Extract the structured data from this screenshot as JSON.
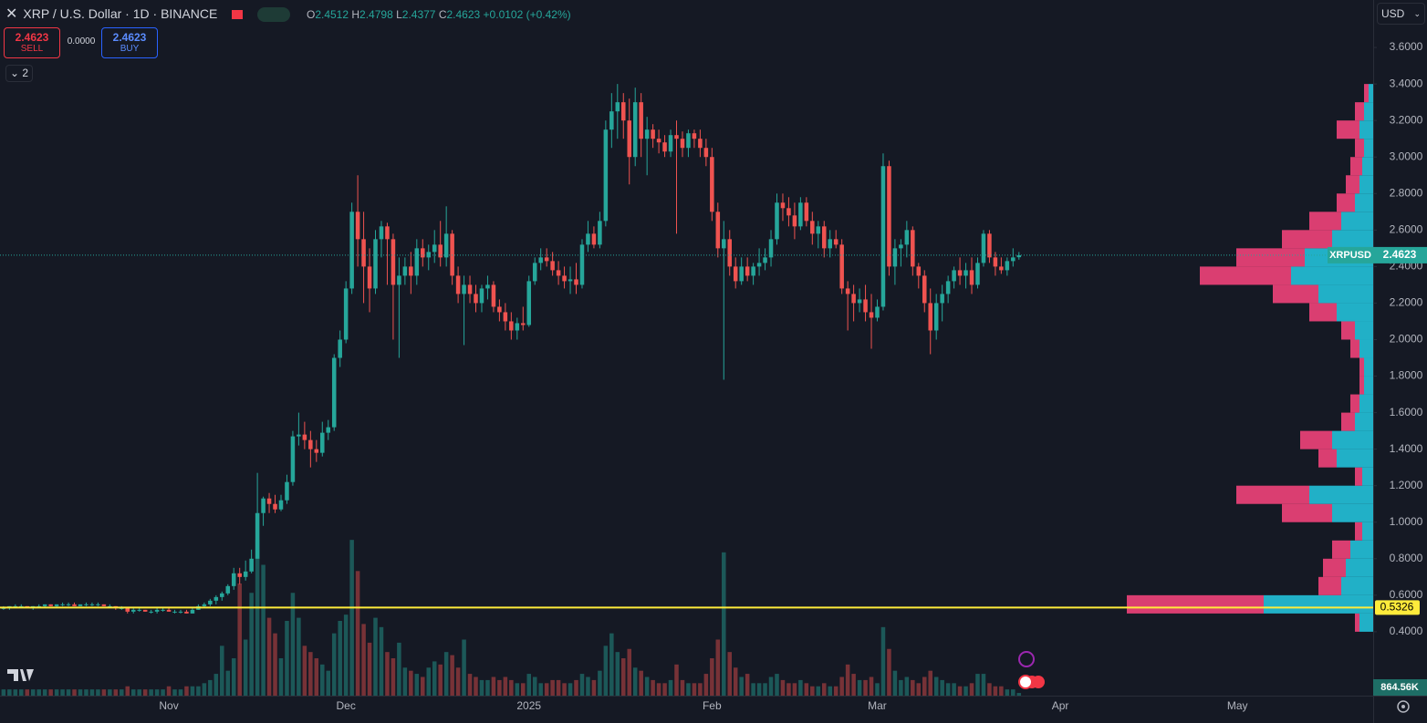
{
  "header": {
    "title": "XRP / U.S. Dollar · 1D · BINANCE",
    "ohlc_keys": [
      "O",
      "H",
      "L",
      "C"
    ],
    "change": "+0.0102 (+0.42%)",
    "sell_label": "SELL",
    "spread": "0.0000",
    "buy_label": "BUY",
    "indicators": "2",
    "currency": "USD"
  },
  "chart_data": {
    "type": "candlestick",
    "symbol": "XRPUSD",
    "up_color": "#26a69a",
    "down_color": "#ef5350",
    "xlim": [
      -0.6,
      232
    ],
    "xticks": [
      {
        "value": 28,
        "label": "Nov"
      },
      {
        "value": 58,
        "label": "Dec"
      },
      {
        "value": 89,
        "label": "2025"
      },
      {
        "value": 120,
        "label": "Feb"
      },
      {
        "value": 148,
        "label": "Mar"
      },
      {
        "value": 179,
        "label": "Apr"
      },
      {
        "value": 209,
        "label": "May"
      }
    ],
    "ylim": [
      0.05,
      3.86
    ],
    "yticks": [
      {
        "value": 0.4,
        "label": "0.4000"
      },
      {
        "value": 0.6,
        "label": "0.6000"
      },
      {
        "value": 0.8,
        "label": "0.8000"
      },
      {
        "value": 1.0,
        "label": "1.0000"
      },
      {
        "value": 1.2,
        "label": "1.2000"
      },
      {
        "value": 1.4,
        "label": "1.4000"
      },
      {
        "value": 1.6,
        "label": "1.6000"
      },
      {
        "value": 1.8,
        "label": "1.8000"
      },
      {
        "value": 2.0,
        "label": "2.0000"
      },
      {
        "value": 2.2,
        "label": "2.2000"
      },
      {
        "value": 2.4,
        "label": "2.4000"
      },
      {
        "value": 2.6,
        "label": "2.6000"
      },
      {
        "value": 2.8,
        "label": "2.8000"
      },
      {
        "value": 3.0,
        "label": "3.0000"
      },
      {
        "value": 3.2,
        "label": "3.2000"
      },
      {
        "value": 3.4,
        "label": "3.4000"
      },
      {
        "value": 3.6,
        "label": "3.6000"
      }
    ],
    "hline": {
      "value": 0.5326,
      "color": "#ffeb3b"
    },
    "candles": [
      [
        0.53,
        0.54,
        0.52,
        0.53
      ],
      [
        0.53,
        0.54,
        0.52,
        0.54
      ],
      [
        0.54,
        0.55,
        0.53,
        0.54
      ],
      [
        0.54,
        0.55,
        0.53,
        0.54
      ],
      [
        0.54,
        0.54,
        0.53,
        0.53
      ],
      [
        0.53,
        0.54,
        0.52,
        0.54
      ],
      [
        0.54,
        0.55,
        0.53,
        0.54
      ],
      [
        0.54,
        0.55,
        0.53,
        0.55
      ],
      [
        0.55,
        0.55,
        0.54,
        0.54
      ],
      [
        0.54,
        0.55,
        0.53,
        0.55
      ],
      [
        0.55,
        0.56,
        0.54,
        0.55
      ],
      [
        0.55,
        0.56,
        0.54,
        0.55
      ],
      [
        0.55,
        0.56,
        0.54,
        0.54
      ],
      [
        0.54,
        0.55,
        0.54,
        0.55
      ],
      [
        0.55,
        0.56,
        0.54,
        0.55
      ],
      [
        0.55,
        0.56,
        0.54,
        0.55
      ],
      [
        0.55,
        0.56,
        0.54,
        0.55
      ],
      [
        0.55,
        0.55,
        0.54,
        0.54
      ],
      [
        0.54,
        0.55,
        0.53,
        0.54
      ],
      [
        0.54,
        0.54,
        0.52,
        0.53
      ],
      [
        0.53,
        0.54,
        0.52,
        0.53
      ],
      [
        0.53,
        0.53,
        0.5,
        0.51
      ],
      [
        0.51,
        0.53,
        0.5,
        0.52
      ],
      [
        0.52,
        0.53,
        0.51,
        0.52
      ],
      [
        0.52,
        0.52,
        0.51,
        0.51
      ],
      [
        0.51,
        0.52,
        0.5,
        0.51
      ],
      [
        0.51,
        0.53,
        0.5,
        0.52
      ],
      [
        0.52,
        0.53,
        0.51,
        0.52
      ],
      [
        0.52,
        0.53,
        0.51,
        0.51
      ],
      [
        0.51,
        0.52,
        0.5,
        0.51
      ],
      [
        0.51,
        0.52,
        0.5,
        0.51
      ],
      [
        0.51,
        0.52,
        0.5,
        0.5
      ],
      [
        0.5,
        0.53,
        0.5,
        0.52
      ],
      [
        0.52,
        0.55,
        0.52,
        0.54
      ],
      [
        0.54,
        0.56,
        0.53,
        0.55
      ],
      [
        0.55,
        0.58,
        0.54,
        0.57
      ],
      [
        0.57,
        0.6,
        0.55,
        0.59
      ],
      [
        0.59,
        0.62,
        0.57,
        0.61
      ],
      [
        0.61,
        0.66,
        0.6,
        0.65
      ],
      [
        0.65,
        0.75,
        0.63,
        0.72
      ],
      [
        0.72,
        0.75,
        0.66,
        0.7
      ],
      [
        0.7,
        0.79,
        0.68,
        0.73
      ],
      [
        0.73,
        0.85,
        0.72,
        0.8
      ],
      [
        0.8,
        1.27,
        0.8,
        1.05
      ],
      [
        1.05,
        1.14,
        0.98,
        1.13
      ],
      [
        1.13,
        1.16,
        1.05,
        1.1
      ],
      [
        1.1,
        1.15,
        1.05,
        1.07
      ],
      [
        1.07,
        1.15,
        1.06,
        1.12
      ],
      [
        1.12,
        1.26,
        1.1,
        1.22
      ],
      [
        1.22,
        1.5,
        1.2,
        1.47
      ],
      [
        1.47,
        1.6,
        1.42,
        1.48
      ],
      [
        1.48,
        1.55,
        1.4,
        1.45
      ],
      [
        1.45,
        1.5,
        1.3,
        1.4
      ],
      [
        1.4,
        1.45,
        1.33,
        1.38
      ],
      [
        1.38,
        1.55,
        1.36,
        1.49
      ],
      [
        1.49,
        1.56,
        1.45,
        1.52
      ],
      [
        1.52,
        1.92,
        1.5,
        1.9
      ],
      [
        1.9,
        2.05,
        1.85,
        2.0
      ],
      [
        2.0,
        2.32,
        1.98,
        2.28
      ],
      [
        2.28,
        2.75,
        2.25,
        2.7
      ],
      [
        2.7,
        2.9,
        2.4,
        2.55
      ],
      [
        2.55,
        2.7,
        2.2,
        2.4
      ],
      [
        2.4,
        2.5,
        2.15,
        2.28
      ],
      [
        2.28,
        2.6,
        2.25,
        2.55
      ],
      [
        2.55,
        2.65,
        2.45,
        2.62
      ],
      [
        2.62,
        2.64,
        2.3,
        2.55
      ],
      [
        2.55,
        2.58,
        2.0,
        2.3
      ],
      [
        2.3,
        2.45,
        1.9,
        2.35
      ],
      [
        2.35,
        2.45,
        2.3,
        2.4
      ],
      [
        2.4,
        2.48,
        2.25,
        2.35
      ],
      [
        2.35,
        2.55,
        2.3,
        2.5
      ],
      [
        2.5,
        2.55,
        2.4,
        2.45
      ],
      [
        2.45,
        2.52,
        2.38,
        2.48
      ],
      [
        2.48,
        2.6,
        2.42,
        2.52
      ],
      [
        2.52,
        2.65,
        2.4,
        2.45
      ],
      [
        2.45,
        2.73,
        2.4,
        2.58
      ],
      [
        2.58,
        2.6,
        2.3,
        2.35
      ],
      [
        2.35,
        2.4,
        2.2,
        2.25
      ],
      [
        2.25,
        2.35,
        1.97,
        2.3
      ],
      [
        2.3,
        2.35,
        2.2,
        2.25
      ],
      [
        2.25,
        2.3,
        2.15,
        2.2
      ],
      [
        2.2,
        2.3,
        2.15,
        2.28
      ],
      [
        2.28,
        2.35,
        2.22,
        2.3
      ],
      [
        2.3,
        2.32,
        2.15,
        2.18
      ],
      [
        2.18,
        2.22,
        2.1,
        2.15
      ],
      [
        2.15,
        2.2,
        2.05,
        2.1
      ],
      [
        2.1,
        2.15,
        2.0,
        2.05
      ],
      [
        2.05,
        2.12,
        2.0,
        2.09
      ],
      [
        2.09,
        2.18,
        2.05,
        2.08
      ],
      [
        2.08,
        2.35,
        2.07,
        2.32
      ],
      [
        2.32,
        2.45,
        2.3,
        2.42
      ],
      [
        2.42,
        2.5,
        2.38,
        2.45
      ],
      [
        2.45,
        2.5,
        2.4,
        2.43
      ],
      [
        2.43,
        2.48,
        2.35,
        2.38
      ],
      [
        2.38,
        2.43,
        2.3,
        2.35
      ],
      [
        2.35,
        2.4,
        2.28,
        2.32
      ],
      [
        2.32,
        2.4,
        2.25,
        2.33
      ],
      [
        2.33,
        2.42,
        2.25,
        2.3
      ],
      [
        2.3,
        2.55,
        2.28,
        2.52
      ],
      [
        2.52,
        2.65,
        2.48,
        2.58
      ],
      [
        2.58,
        2.62,
        2.5,
        2.52
      ],
      [
        2.52,
        2.7,
        2.5,
        2.65
      ],
      [
        2.65,
        3.2,
        2.62,
        3.15
      ],
      [
        3.15,
        3.35,
        3.05,
        3.25
      ],
      [
        3.25,
        3.4,
        3.1,
        3.3
      ],
      [
        3.3,
        3.35,
        3.1,
        3.2
      ],
      [
        3.2,
        3.32,
        2.85,
        3.0
      ],
      [
        3.0,
        3.38,
        2.95,
        3.3
      ],
      [
        3.3,
        3.35,
        3.0,
        3.1
      ],
      [
        3.1,
        3.22,
        2.9,
        3.15
      ],
      [
        3.15,
        3.18,
        3.05,
        3.1
      ],
      [
        3.1,
        3.15,
        3.02,
        3.08
      ],
      [
        3.08,
        3.12,
        3.0,
        3.03
      ],
      [
        3.03,
        3.15,
        3.0,
        3.12
      ],
      [
        3.12,
        3.2,
        2.58,
        3.1
      ],
      [
        3.1,
        3.14,
        3.0,
        3.05
      ],
      [
        3.05,
        3.15,
        3.0,
        3.13
      ],
      [
        3.13,
        3.15,
        3.05,
        3.1
      ],
      [
        3.1,
        3.15,
        3.0,
        3.05
      ],
      [
        3.05,
        3.1,
        2.95,
        3.0
      ],
      [
        3.0,
        3.05,
        2.65,
        2.7
      ],
      [
        2.7,
        2.75,
        2.45,
        2.5
      ],
      [
        2.5,
        2.65,
        1.78,
        2.55
      ],
      [
        2.55,
        2.6,
        2.35,
        2.4
      ],
      [
        2.4,
        2.45,
        2.28,
        2.32
      ],
      [
        2.32,
        2.45,
        2.3,
        2.4
      ],
      [
        2.4,
        2.45,
        2.32,
        2.35
      ],
      [
        2.35,
        2.42,
        2.3,
        2.4
      ],
      [
        2.4,
        2.5,
        2.35,
        2.42
      ],
      [
        2.42,
        2.5,
        2.38,
        2.45
      ],
      [
        2.45,
        2.6,
        2.4,
        2.55
      ],
      [
        2.55,
        2.8,
        2.52,
        2.75
      ],
      [
        2.75,
        2.8,
        2.65,
        2.72
      ],
      [
        2.72,
        2.78,
        2.62,
        2.68
      ],
      [
        2.68,
        2.75,
        2.55,
        2.62
      ],
      [
        2.62,
        2.78,
        2.6,
        2.75
      ],
      [
        2.75,
        2.78,
        2.62,
        2.65
      ],
      [
        2.65,
        2.7,
        2.52,
        2.58
      ],
      [
        2.58,
        2.65,
        2.5,
        2.62
      ],
      [
        2.62,
        2.65,
        2.45,
        2.5
      ],
      [
        2.5,
        2.6,
        2.45,
        2.55
      ],
      [
        2.55,
        2.6,
        2.5,
        2.52
      ],
      [
        2.52,
        2.55,
        2.25,
        2.28
      ],
      [
        2.28,
        2.32,
        2.05,
        2.25
      ],
      [
        2.25,
        2.3,
        2.1,
        2.2
      ],
      [
        2.2,
        2.28,
        2.15,
        2.22
      ],
      [
        2.22,
        2.3,
        2.1,
        2.15
      ],
      [
        2.15,
        2.25,
        1.95,
        2.12
      ],
      [
        2.12,
        2.22,
        2.1,
        2.18
      ],
      [
        2.18,
        3.02,
        2.16,
        2.95
      ],
      [
        2.95,
        2.98,
        2.35,
        2.4
      ],
      [
        2.4,
        2.55,
        2.3,
        2.5
      ],
      [
        2.5,
        2.55,
        2.4,
        2.52
      ],
      [
        2.52,
        2.65,
        2.45,
        2.6
      ],
      [
        2.6,
        2.62,
        2.35,
        2.4
      ],
      [
        2.4,
        2.42,
        2.28,
        2.35
      ],
      [
        2.35,
        2.38,
        2.15,
        2.2
      ],
      [
        2.2,
        2.28,
        1.92,
        2.05
      ],
      [
        2.05,
        2.25,
        2.0,
        2.2
      ],
      [
        2.2,
        2.3,
        2.1,
        2.25
      ],
      [
        2.25,
        2.35,
        2.2,
        2.32
      ],
      [
        2.32,
        2.4,
        2.28,
        2.38
      ],
      [
        2.38,
        2.45,
        2.3,
        2.35
      ],
      [
        2.35,
        2.42,
        2.28,
        2.38
      ],
      [
        2.38,
        2.45,
        2.25,
        2.3
      ],
      [
        2.3,
        2.45,
        2.28,
        2.42
      ],
      [
        2.42,
        2.6,
        2.4,
        2.58
      ],
      [
        2.58,
        2.6,
        2.42,
        2.45
      ],
      [
        2.45,
        2.48,
        2.35,
        2.4
      ],
      [
        2.4,
        2.45,
        2.36,
        2.38
      ],
      [
        2.38,
        2.45,
        2.35,
        2.43
      ],
      [
        2.43,
        2.5,
        2.4,
        2.45
      ],
      [
        2.4512,
        2.4798,
        2.4377,
        2.4623
      ]
    ],
    "volume": {
      "ylim": [
        0,
        60
      ],
      "last_label": "864.56K",
      "values": [
        2,
        2,
        2,
        2,
        2,
        2,
        2,
        2,
        2,
        2,
        2,
        2,
        2,
        2,
        2,
        2,
        2,
        2,
        2,
        2,
        2,
        3,
        2,
        2,
        2,
        2,
        2,
        2,
        3,
        2,
        2,
        3,
        3,
        3,
        4,
        5,
        7,
        16,
        8,
        12,
        36,
        18,
        33,
        50,
        42,
        25,
        20,
        12,
        24,
        33,
        25,
        16,
        14,
        12,
        10,
        8,
        20,
        24,
        26,
        50,
        40,
        23,
        17,
        25,
        22,
        14,
        12,
        17,
        9,
        8,
        7,
        6,
        9,
        11,
        10,
        14,
        13,
        9,
        18,
        7,
        6,
        5,
        5,
        6,
        5,
        6,
        5,
        4,
        4,
        7,
        6,
        4,
        4,
        5,
        5,
        4,
        4,
        5,
        7,
        6,
        5,
        8,
        16,
        20,
        14,
        12,
        15,
        9,
        8,
        6,
        5,
        4,
        4,
        5,
        10,
        5,
        4,
        4,
        4,
        7,
        12,
        18,
        46,
        14,
        9,
        6,
        7,
        4,
        4,
        4,
        6,
        7,
        5,
        4,
        4,
        5,
        4,
        3,
        3,
        4,
        3,
        3,
        6,
        10,
        7,
        5,
        5,
        6,
        4,
        22,
        15,
        8,
        5,
        6,
        5,
        4,
        6,
        8,
        6,
        5,
        4,
        4,
        3,
        3,
        4,
        7,
        7,
        4,
        3,
        3,
        2,
        2,
        0.86456
      ]
    },
    "volume_profile": {
      "buy_color": "#22c1d9",
      "sell_color": "#f0437a",
      "prices": [
        0.45,
        0.55,
        0.65,
        0.75,
        0.85,
        0.95,
        1.05,
        1.15,
        1.25,
        1.35,
        1.45,
        1.55,
        1.65,
        1.75,
        1.85,
        1.95,
        2.05,
        2.15,
        2.25,
        2.35,
        2.45,
        2.55,
        2.65,
        2.75,
        2.85,
        2.95,
        3.05,
        3.15,
        3.25,
        3.35
      ],
      "buy": [
        15,
        120,
        35,
        30,
        25,
        12,
        45,
        70,
        12,
        40,
        45,
        20,
        15,
        10,
        10,
        15,
        20,
        40,
        60,
        90,
        75,
        45,
        35,
        20,
        15,
        12,
        10,
        15,
        10,
        5
      ],
      "sell": [
        5,
        150,
        25,
        25,
        20,
        8,
        55,
        80,
        8,
        20,
        35,
        15,
        10,
        5,
        5,
        10,
        15,
        30,
        50,
        100,
        75,
        55,
        35,
        20,
        15,
        13,
        10,
        25,
        10,
        5
      ]
    }
  }
}
